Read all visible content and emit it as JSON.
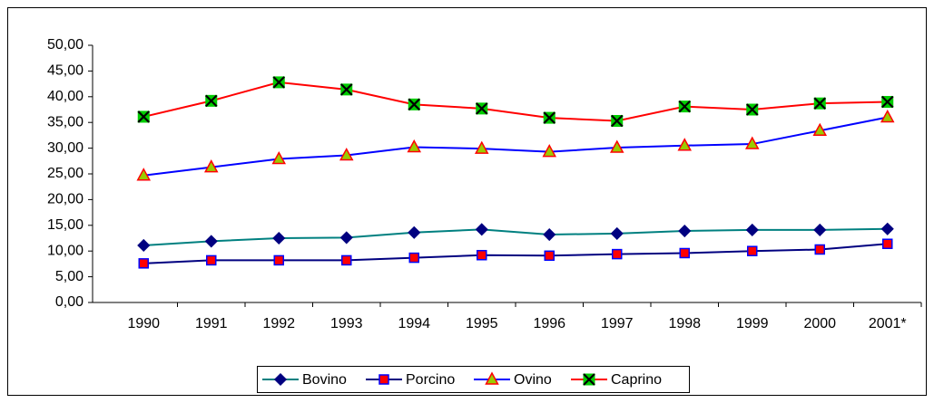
{
  "chart_data": {
    "type": "line",
    "categories": [
      "1990",
      "1991",
      "1992",
      "1993",
      "1994",
      "1995",
      "1996",
      "1997",
      "1998",
      "1999",
      "2000",
      "2001*"
    ],
    "series": [
      {
        "name": "Bovino",
        "color": "#008080",
        "marker": "diamond",
        "marker_fill": "#000080",
        "marker_stroke": "#000080",
        "values": [
          11.1,
          11.9,
          12.5,
          12.6,
          13.6,
          14.2,
          13.2,
          13.4,
          13.9,
          14.1,
          14.1,
          14.3
        ]
      },
      {
        "name": "Porcino",
        "color": "#000080",
        "marker": "square",
        "marker_fill": "#ff0000",
        "marker_stroke": "#0000ff",
        "values": [
          7.6,
          8.2,
          8.2,
          8.2,
          8.7,
          9.2,
          9.1,
          9.4,
          9.6,
          10.0,
          10.3,
          11.4
        ]
      },
      {
        "name": "Ovino",
        "color": "#0000ff",
        "marker": "triangle",
        "marker_fill": "#99cc00",
        "marker_stroke": "#ff0000",
        "values": [
          24.7,
          26.3,
          27.9,
          28.6,
          30.2,
          29.9,
          29.3,
          30.1,
          30.5,
          30.8,
          33.4,
          36.0
        ]
      },
      {
        "name": "Caprino",
        "color": "#ff0000",
        "marker": "xsquare",
        "marker_fill": "#00cc00",
        "marker_stroke": "#000000",
        "values": [
          36.1,
          39.2,
          42.8,
          41.4,
          38.5,
          37.7,
          35.9,
          35.3,
          38.1,
          37.5,
          38.7,
          39.0
        ]
      }
    ],
    "ylim": [
      0,
      50
    ],
    "yticks": [
      {
        "value": 0,
        "label": "0,00"
      },
      {
        "value": 5,
        "label": "5,00"
      },
      {
        "value": 10,
        "label": "10,00"
      },
      {
        "value": 15,
        "label": "15,00"
      },
      {
        "value": 20,
        "label": "20,00"
      },
      {
        "value": 25,
        "label": "25,00"
      },
      {
        "value": 30,
        "label": "30,00"
      },
      {
        "value": 35,
        "label": "35,00"
      },
      {
        "value": 40,
        "label": "40,00"
      },
      {
        "value": 45,
        "label": "45,00"
      },
      {
        "value": 50,
        "label": "50,00"
      }
    ],
    "grid": false,
    "legend": "bottom"
  }
}
